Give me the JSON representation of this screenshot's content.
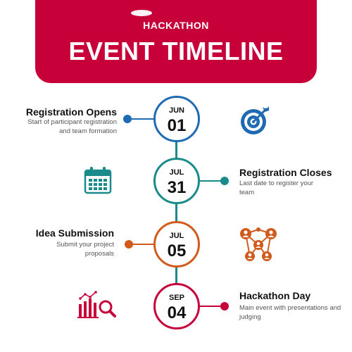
{
  "header": {
    "subtitle": "HACKATHON",
    "title": "EVENT TIMELINE"
  },
  "colors": {
    "header": "#c8003a",
    "timeline_line": "#1a8a8a",
    "event1": "#1f6bb3",
    "event2": "#1a8a8a",
    "event3": "#d15a1c",
    "event4": "#c8003a"
  },
  "events": [
    {
      "month": "JUN",
      "day": "01",
      "title": "Registration Opens",
      "description": "Start of participant registration and team formation",
      "icon": "target-icon"
    },
    {
      "month": "JUL",
      "day": "31",
      "title": "Registration Closes",
      "description": "Last date to register your team",
      "icon": "calendar-icon"
    },
    {
      "month": "JUL",
      "day": "05",
      "title": "Idea Submission",
      "description": "Submit your project proposals",
      "icon": "team-network-icon"
    },
    {
      "month": "SEP",
      "day": "04",
      "title": "Hackathon Day",
      "description": "Main event with presentations and judging",
      "icon": "analytics-search-icon"
    }
  ]
}
